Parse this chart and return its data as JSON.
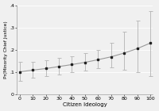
{
  "x": [
    0,
    10,
    20,
    30,
    40,
    50,
    60,
    70,
    80,
    90,
    100
  ],
  "y": [
    0.1,
    0.108,
    0.115,
    0.124,
    0.133,
    0.143,
    0.155,
    0.168,
    0.185,
    0.205,
    0.23
  ],
  "y_lower": [
    0.06,
    0.072,
    0.08,
    0.088,
    0.097,
    0.107,
    0.117,
    0.12,
    0.11,
    0.1,
    0.08
  ],
  "y_upper": [
    0.145,
    0.145,
    0.152,
    0.162,
    0.172,
    0.185,
    0.2,
    0.23,
    0.28,
    0.33,
    0.375
  ],
  "xlabel": "Citizen Ideology",
  "ylabel": "Pr(Minority Chief Justice)",
  "xlim": [
    -2,
    102
  ],
  "ylim": [
    0,
    0.4
  ],
  "xticks": [
    0,
    10,
    20,
    30,
    40,
    50,
    60,
    70,
    80,
    90,
    100
  ],
  "yticks": [
    0.0,
    0.1,
    0.2,
    0.3,
    0.4
  ],
  "ytick_labels": [
    "0",
    ".1",
    ".2",
    ".3",
    ".4"
  ],
  "line_color": "#999999",
  "marker_color": "#222222",
  "ci_color": "#bbbbbb",
  "bg_color": "#f0f0f0",
  "grid_color": "#ffffff"
}
